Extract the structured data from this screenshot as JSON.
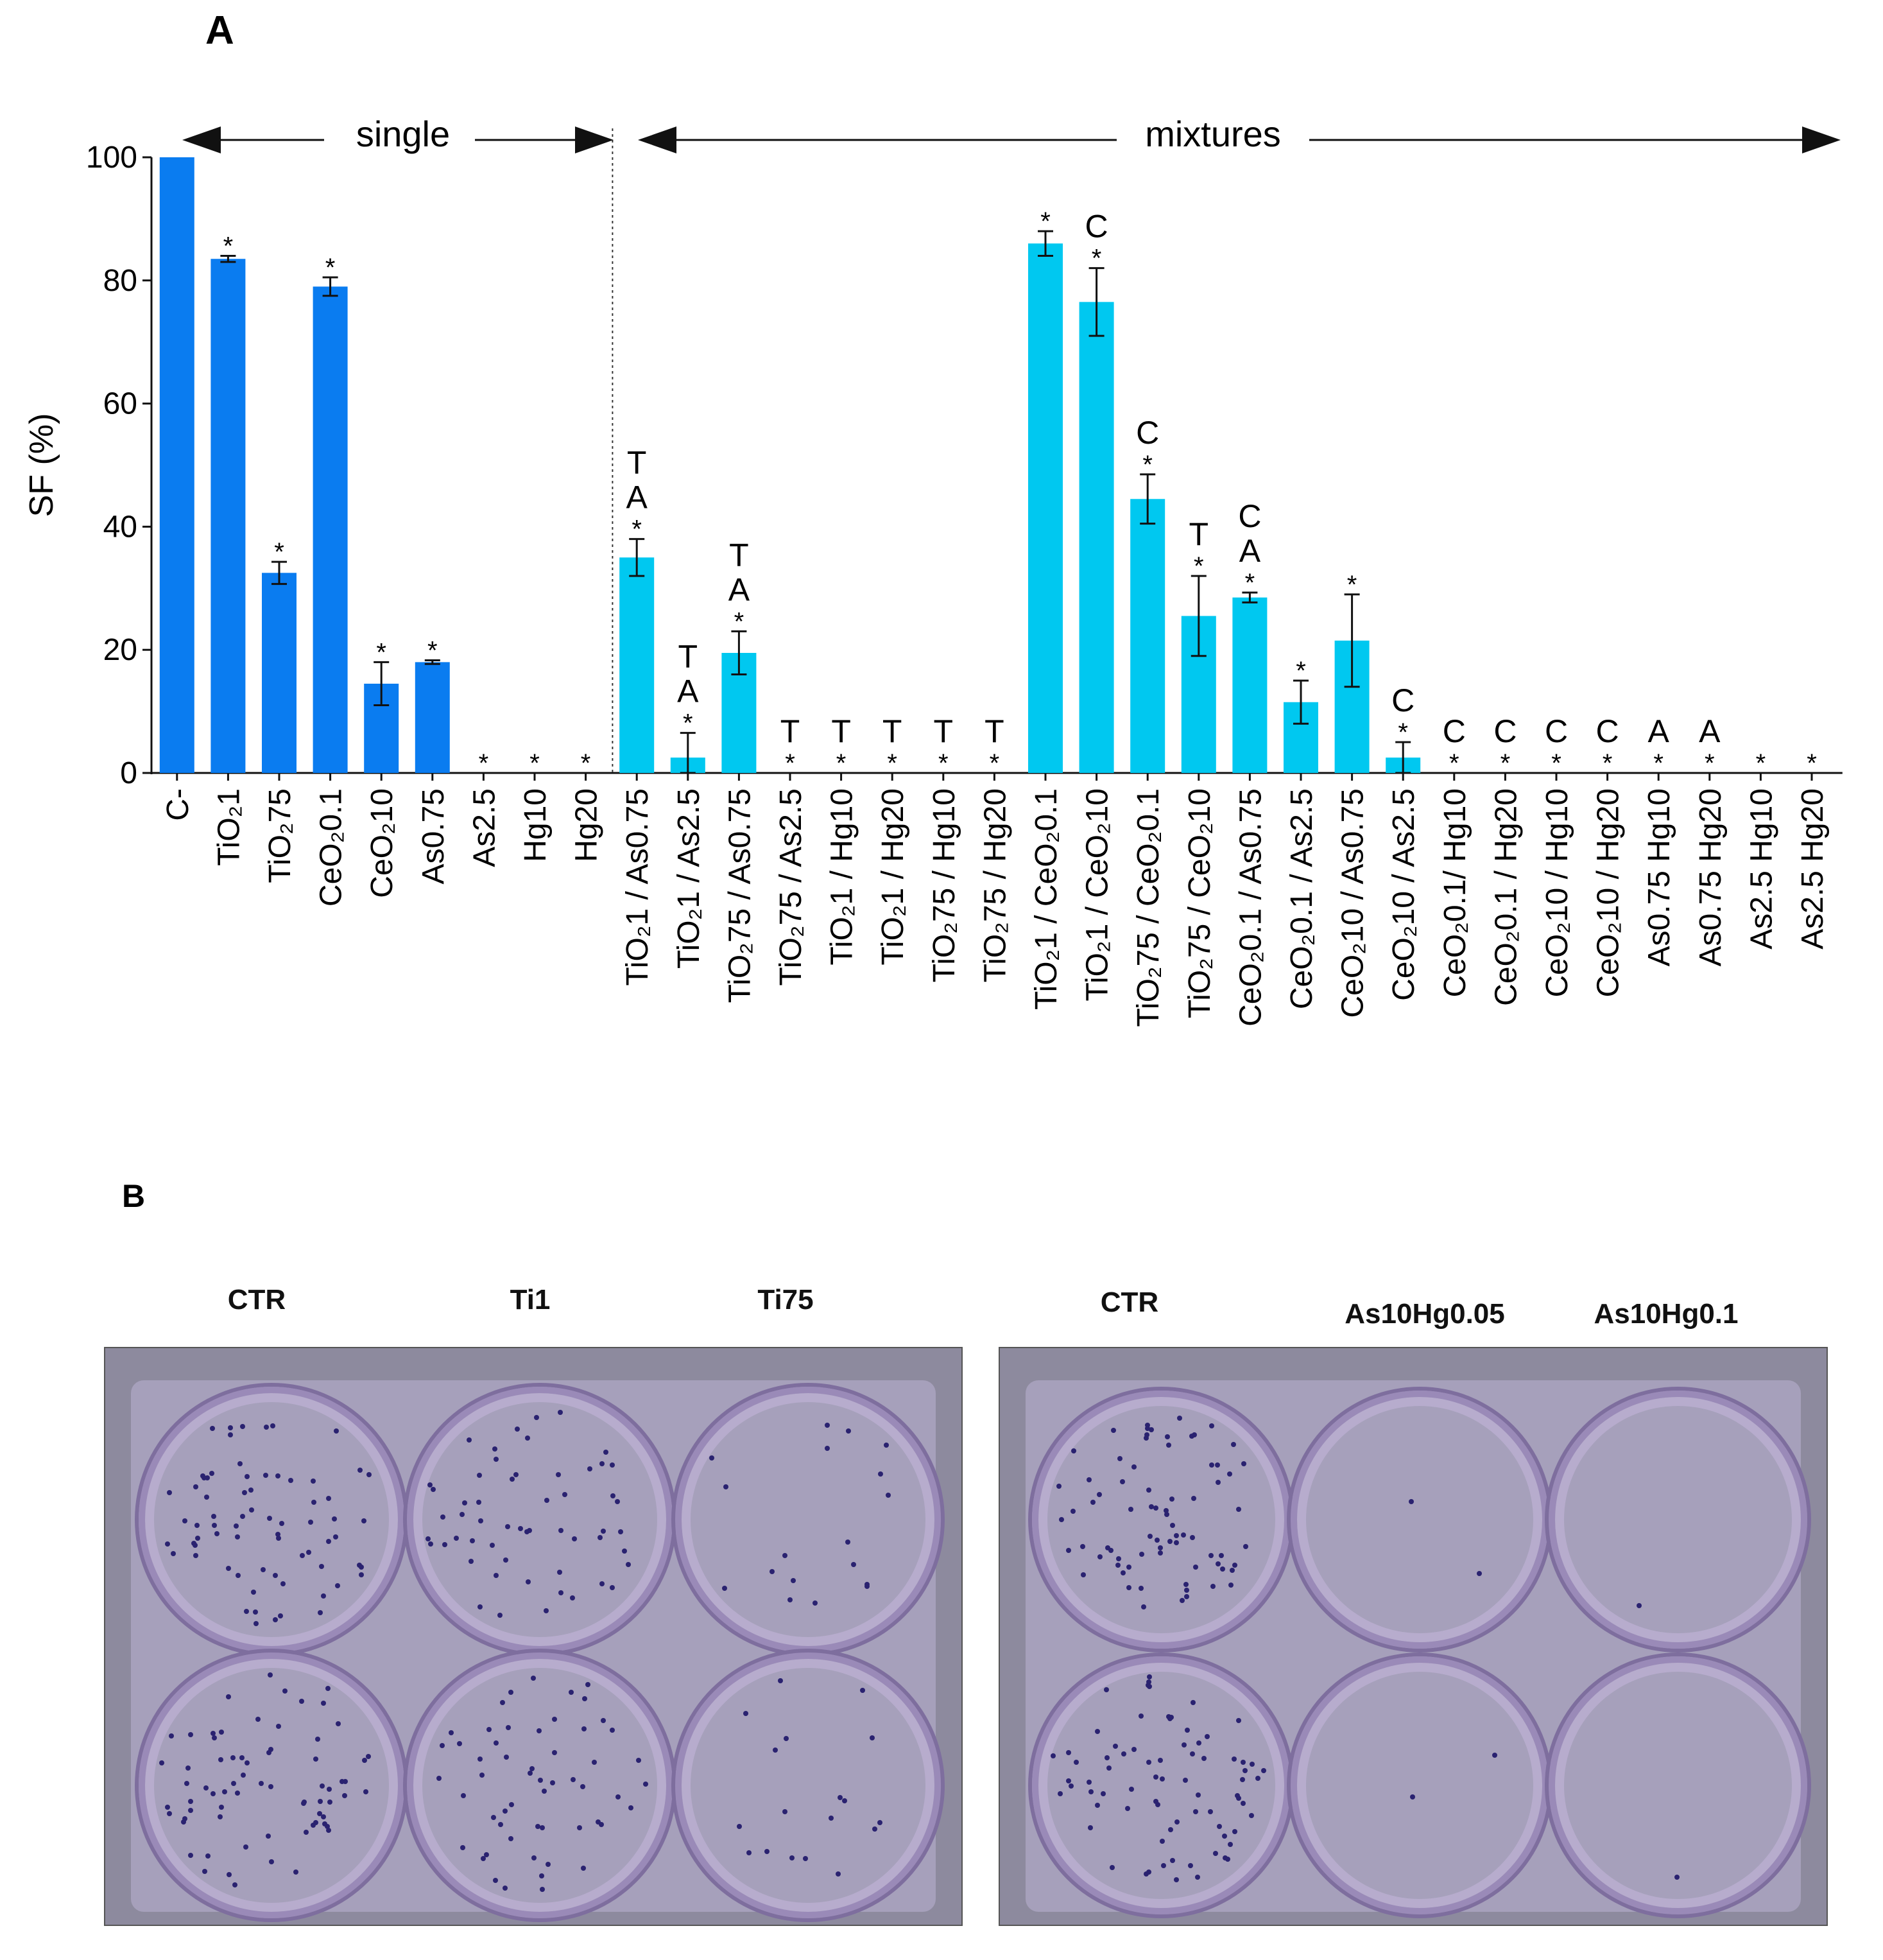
{
  "panel_a_label": "A",
  "panel_b_label": "B",
  "chart_data": {
    "type": "bar",
    "title": "",
    "xlabel": "",
    "ylabel": "SF (%)",
    "ylim": [
      0,
      100
    ],
    "yticks": [
      0,
      20,
      40,
      60,
      80,
      100
    ],
    "group_labels": {
      "single": "single",
      "mixtures": "mixtures"
    },
    "colors": {
      "single": "#0a7cf0",
      "mixtures": "#00c8f0"
    },
    "categories": [
      "C-",
      "TiO₂1",
      "TiO₂75",
      "CeO₂0.1",
      "CeO₂10",
      "As0.75",
      "As2.5",
      "Hg10",
      "Hg20",
      "TiO₂1 / As0.75",
      "TiO₂1 / As2.5",
      "TiO₂75 / As0.75",
      "TiO₂75 / As2.5",
      "TiO₂1 / Hg10",
      "TiO₂1 / Hg20",
      "TiO₂75 / Hg10",
      "TiO₂75 / Hg20",
      "TiO₂1 / CeO₂0.1",
      "TiO₂1 / CeO₂10",
      "TiO₂75 / CeO₂0.1",
      "TiO₂75 / CeO₂10",
      "CeO₂0.1 / As0.75",
      "CeO₂0.1 / As2.5",
      "CeO₂10 / As0.75",
      "CeO₂10 / As2.5",
      "CeO₂0.1/ Hg10",
      "CeO₂0.1 / Hg20",
      "CeO₂10 / Hg10",
      "CeO₂10 / Hg20",
      "As0.75 Hg10",
      "As0.75 Hg20",
      "As2.5 Hg10",
      "As2.5 Hg20"
    ],
    "groups": [
      "single",
      "single",
      "single",
      "single",
      "single",
      "single",
      "single",
      "single",
      "single",
      "mixtures",
      "mixtures",
      "mixtures",
      "mixtures",
      "mixtures",
      "mixtures",
      "mixtures",
      "mixtures",
      "mixtures",
      "mixtures",
      "mixtures",
      "mixtures",
      "mixtures",
      "mixtures",
      "mixtures",
      "mixtures",
      "mixtures",
      "mixtures",
      "mixtures",
      "mixtures",
      "mixtures",
      "mixtures",
      "mixtures",
      "mixtures"
    ],
    "values": [
      100,
      83.5,
      32.5,
      79,
      14.5,
      18,
      0,
      0,
      0,
      35,
      2.5,
      19.5,
      0,
      0,
      0,
      0,
      0,
      86,
      76.5,
      44.5,
      25.5,
      28.5,
      11.5,
      21.5,
      2.5,
      0,
      0,
      0,
      0,
      0,
      0,
      0,
      0
    ],
    "errors": [
      0,
      0.5,
      1.8,
      1.5,
      3.5,
      0.3,
      0,
      0,
      0,
      3,
      4,
      3.5,
      0,
      0,
      0,
      0,
      0,
      2,
      5.5,
      4,
      6.5,
      0.8,
      3.5,
      7.5,
      2.5,
      0,
      0,
      0,
      0,
      0,
      0,
      0,
      0
    ],
    "annotations": [
      "",
      "*",
      "*",
      "*",
      "*",
      "*",
      "*",
      "*",
      "*",
      "T\nA\n*",
      "T\nA\n*",
      "T\nA\n*",
      "T\n*",
      "T\n*",
      "T\n*",
      "T\n*",
      "T\n*",
      "*",
      "C\n*",
      "C\n*",
      "T\n*",
      "C\nA\n*",
      "*",
      "*",
      "C\n*",
      "C\n*",
      "C\n*",
      "C\n*",
      "C\n*",
      "A\n*",
      "A\n*",
      "*",
      "*"
    ]
  },
  "panel_b": {
    "left_labels": [
      "CTR",
      "Ti1",
      "Ti75"
    ],
    "right_labels": [
      "CTR",
      "As10Hg0.05",
      "As10Hg0.1"
    ]
  }
}
